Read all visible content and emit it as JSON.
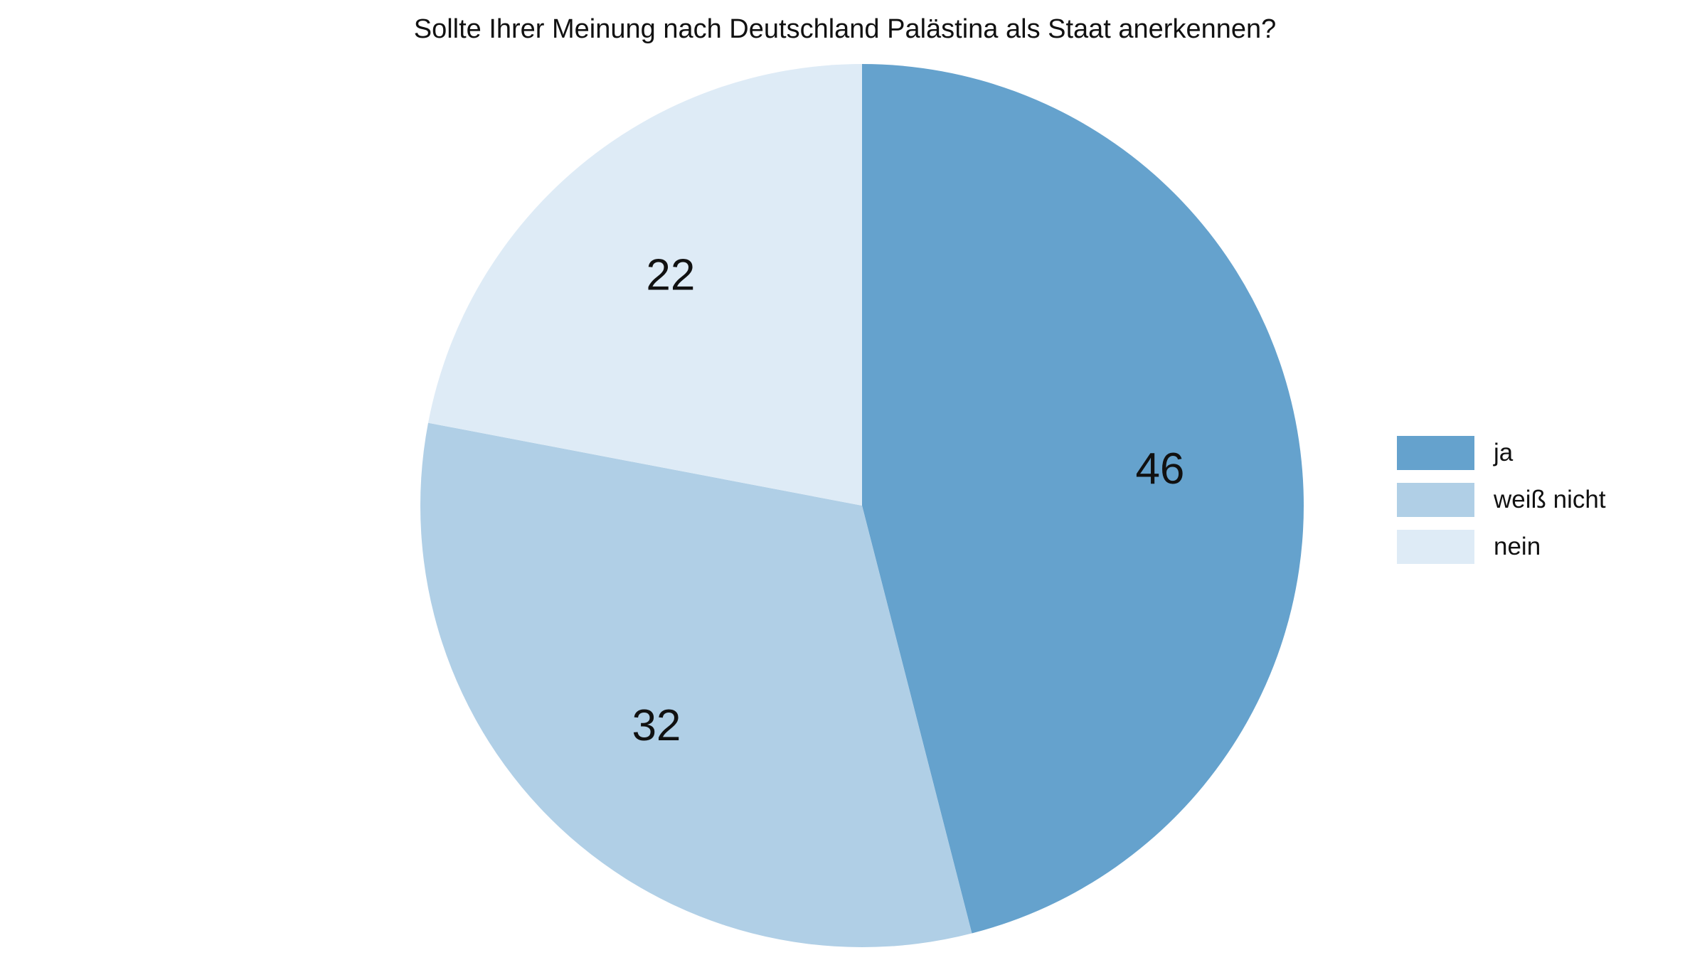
{
  "chart_data": {
    "type": "pie",
    "title": "Sollte Ihrer Meinung nach Deutschland Palästina als Staat anerkennen?",
    "categories": [
      "ja",
      "weiß nicht",
      "nein"
    ],
    "values": [
      46,
      32,
      22
    ],
    "data_labels": [
      "46",
      "32",
      "22"
    ],
    "colors": [
      "#65a2cd",
      "#b0cfe6",
      "#deebf6"
    ],
    "start": "12 o'clock",
    "direction": "clockwise",
    "legend_position": "right"
  }
}
